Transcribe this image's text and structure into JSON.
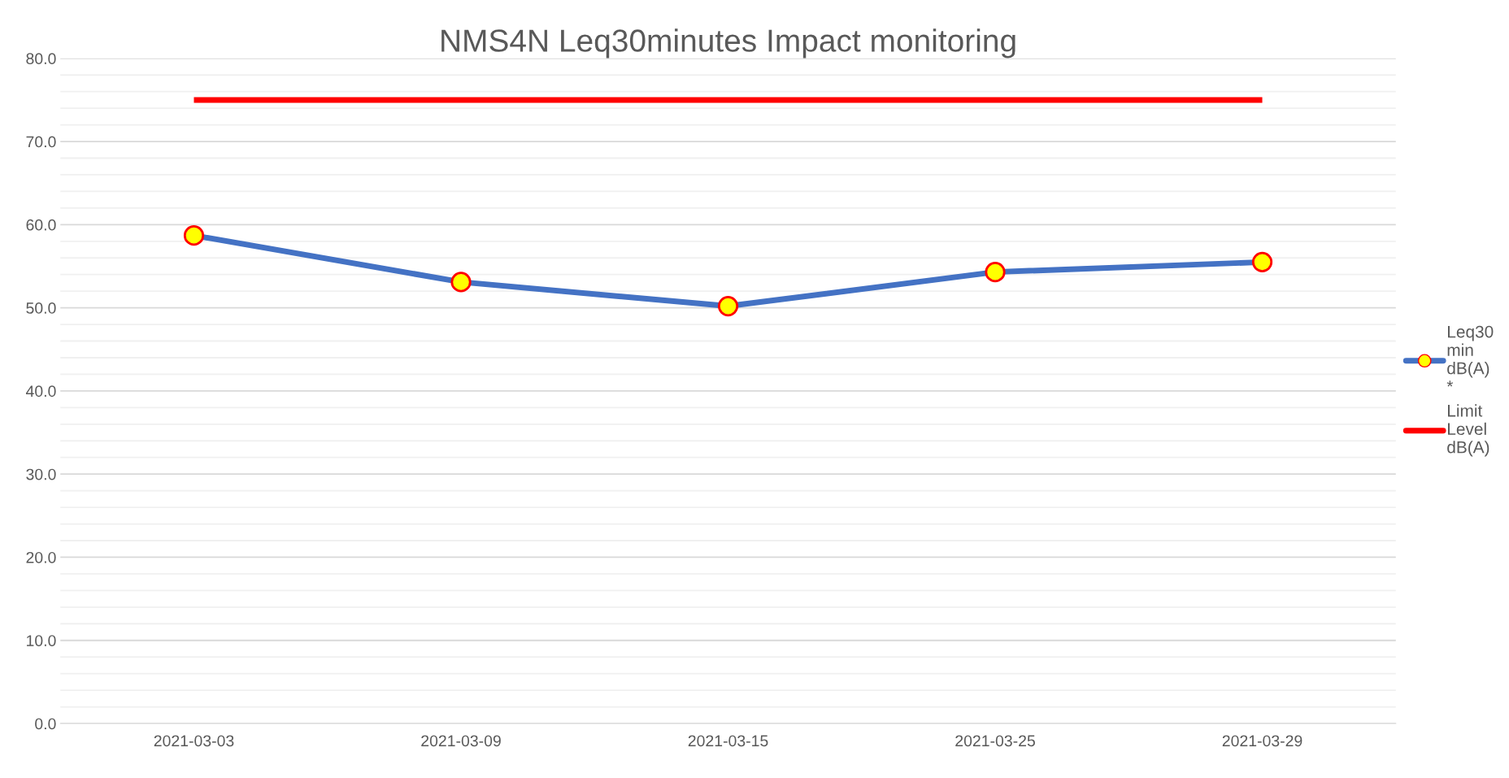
{
  "chart_data": {
    "type": "line",
    "title": "NMS4N Leq30minutes Impact monitoring",
    "categories": [
      "2021-03-03",
      "2021-03-09",
      "2021-03-15",
      "2021-03-25",
      "2021-03-29"
    ],
    "series": [
      {
        "name": "Leq30 min dB(A) *",
        "color": "#4472c4",
        "marker": "circle",
        "values": [
          58.7,
          53.1,
          50.2,
          54.3,
          55.5
        ]
      },
      {
        "name": "Limit Level dB(A)",
        "color": "#ff0000",
        "marker": "none",
        "values": [
          75,
          75,
          75,
          75,
          75
        ]
      }
    ],
    "ylim": [
      0,
      80
    ],
    "yticks": [
      {
        "value": 0,
        "label": "0.0"
      },
      {
        "value": 2,
        "label": null
      },
      {
        "value": 4,
        "label": null
      },
      {
        "value": 6,
        "label": null
      },
      {
        "value": 8,
        "label": null
      },
      {
        "value": 10,
        "label": "10.0"
      },
      {
        "value": 12,
        "label": null
      },
      {
        "value": 14,
        "label": null
      },
      {
        "value": 16,
        "label": null
      },
      {
        "value": 18,
        "label": null
      },
      {
        "value": 20,
        "label": "20.0"
      },
      {
        "value": 22,
        "label": null
      },
      {
        "value": 24,
        "label": null
      },
      {
        "value": 26,
        "label": null
      },
      {
        "value": 28,
        "label": null
      },
      {
        "value": 30,
        "label": "30.0"
      },
      {
        "value": 32,
        "label": null
      },
      {
        "value": 34,
        "label": null
      },
      {
        "value": 36,
        "label": null
      },
      {
        "value": 38,
        "label": null
      },
      {
        "value": 40,
        "label": "40.0"
      },
      {
        "value": 42,
        "label": null
      },
      {
        "value": 44,
        "label": null
      },
      {
        "value": 46,
        "label": null
      },
      {
        "value": 48,
        "label": null
      },
      {
        "value": 50,
        "label": "50.0"
      },
      {
        "value": 52,
        "label": null
      },
      {
        "value": 54,
        "label": null
      },
      {
        "value": 56,
        "label": null
      },
      {
        "value": 58,
        "label": null
      },
      {
        "value": 60,
        "label": "60.0"
      },
      {
        "value": 62,
        "label": null
      },
      {
        "value": 64,
        "label": null
      },
      {
        "value": 66,
        "label": null
      },
      {
        "value": 68,
        "label": null
      },
      {
        "value": 70,
        "label": "70.0"
      },
      {
        "value": 72,
        "label": null
      },
      {
        "value": 74,
        "label": null
      },
      {
        "value": 76,
        "label": null
      },
      {
        "value": 78,
        "label": null
      },
      {
        "value": 80,
        "label": "80.0"
      }
    ],
    "grid": "y",
    "legend": "right"
  }
}
